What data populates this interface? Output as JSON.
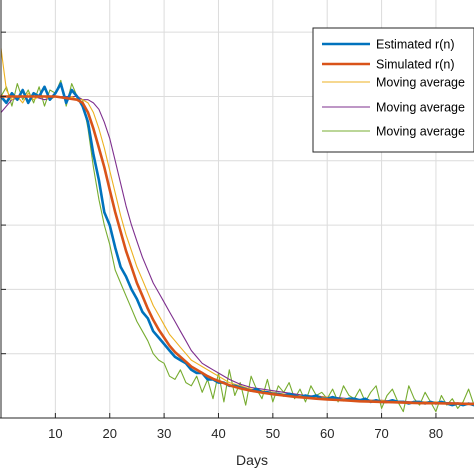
{
  "chart_data": {
    "type": "line",
    "title": "",
    "xlabel": "Days",
    "ylabel": "",
    "xlim": [
      0,
      87
    ],
    "ylim": [
      0,
      1.3
    ],
    "grid": true,
    "legend_placement": "top-right",
    "x_ticks": [
      10,
      20,
      30,
      40,
      50,
      60,
      70,
      80
    ],
    "y_gridlines": [
      0.2,
      0.4,
      0.6,
      0.8,
      1.0,
      1.2
    ],
    "colors": {
      "estimated": "#0072BD",
      "simulated": "#D95319",
      "ma1": "#EDB120",
      "ma2": "#7E2F8E",
      "ma3": "#77AC30",
      "grid": "#dcdcdc",
      "axis": "#262626"
    },
    "series": [
      {
        "name": "Estimated r(n)",
        "color": "#0072BD",
        "width": 2.6,
        "x": [
          0,
          1,
          2,
          3,
          4,
          5,
          6,
          7,
          8,
          9,
          10,
          11,
          12,
          13,
          14,
          15,
          16,
          17,
          18,
          19,
          20,
          21,
          22,
          23,
          24,
          25,
          26,
          27,
          28,
          29,
          30,
          31,
          32,
          33,
          34,
          35,
          36,
          37,
          38,
          39,
          40,
          41,
          42,
          43,
          44,
          45,
          46,
          47,
          48,
          49,
          50,
          51,
          52,
          53,
          54,
          55,
          56,
          57,
          58,
          59,
          60,
          61,
          62,
          63,
          64,
          65,
          66,
          67,
          68,
          69,
          70,
          71,
          72,
          73,
          74,
          75,
          76,
          77,
          78,
          79,
          80,
          81,
          82,
          83,
          84,
          85,
          86,
          87
        ],
        "y": [
          1.0,
          0.98,
          1.01,
          0.99,
          1.02,
          0.98,
          1.01,
          1.0,
          1.03,
          0.99,
          1.01,
          1.04,
          0.98,
          1.02,
          1.0,
          0.97,
          0.92,
          0.82,
          0.74,
          0.64,
          0.6,
          0.53,
          0.47,
          0.44,
          0.4,
          0.37,
          0.33,
          0.31,
          0.27,
          0.25,
          0.23,
          0.21,
          0.19,
          0.18,
          0.17,
          0.15,
          0.14,
          0.14,
          0.12,
          0.12,
          0.11,
          0.11,
          0.1,
          0.1,
          0.095,
          0.09,
          0.085,
          0.09,
          0.08,
          0.08,
          0.075,
          0.075,
          0.07,
          0.075,
          0.07,
          0.065,
          0.07,
          0.065,
          0.07,
          0.06,
          0.06,
          0.065,
          0.06,
          0.055,
          0.06,
          0.06,
          0.055,
          0.06,
          0.05,
          0.055,
          0.05,
          0.05,
          0.055,
          0.05,
          0.05,
          0.045,
          0.05,
          0.05,
          0.045,
          0.05,
          0.045,
          0.05,
          0.045,
          0.04,
          0.045,
          0.04,
          0.045,
          0.04
        ]
      },
      {
        "name": "Simulated r(n)",
        "color": "#D95319",
        "width": 2.6,
        "x": [
          0,
          2,
          4,
          6,
          8,
          10,
          12,
          14,
          15,
          16,
          17,
          18,
          19,
          20,
          21,
          22,
          23,
          24,
          25,
          26,
          27,
          28,
          29,
          30,
          31,
          32,
          33,
          34,
          35,
          36,
          37,
          38,
          39,
          40,
          42,
          44,
          46,
          48,
          50,
          52,
          54,
          56,
          58,
          60,
          62,
          64,
          66,
          68,
          70,
          72,
          74,
          76,
          78,
          80,
          82,
          84,
          86,
          87
        ],
        "y": [
          1.0,
          1.0,
          1.0,
          1.0,
          1.0,
          1.0,
          0.995,
          0.99,
          0.98,
          0.95,
          0.9,
          0.84,
          0.78,
          0.71,
          0.64,
          0.58,
          0.52,
          0.47,
          0.42,
          0.38,
          0.34,
          0.305,
          0.275,
          0.25,
          0.225,
          0.205,
          0.19,
          0.175,
          0.16,
          0.15,
          0.14,
          0.13,
          0.122,
          0.115,
          0.102,
          0.092,
          0.085,
          0.079,
          0.074,
          0.07,
          0.066,
          0.063,
          0.06,
          0.058,
          0.056,
          0.054,
          0.052,
          0.051,
          0.05,
          0.049,
          0.048,
          0.047,
          0.046,
          0.046,
          0.045,
          0.045,
          0.044,
          0.044
        ]
      },
      {
        "name": "Moving average",
        "color": "#EDB120",
        "width": 1.1,
        "x": [
          0,
          1,
          2,
          3,
          4,
          5,
          6,
          7,
          8,
          9,
          10,
          11,
          12,
          13,
          14,
          15,
          16,
          17,
          18,
          19,
          20,
          21,
          22,
          23,
          24,
          25,
          26,
          27,
          28,
          29,
          30,
          31,
          32,
          33,
          34,
          35,
          36,
          37,
          38,
          39,
          40,
          42,
          44,
          46,
          48,
          50,
          52,
          54,
          56,
          58,
          60,
          62,
          64,
          66,
          68,
          70,
          72,
          74,
          76,
          78,
          80,
          82,
          84,
          86,
          87
        ],
        "y": [
          1.15,
          1.02,
          0.99,
          1.0,
          0.98,
          1.01,
          0.99,
          1.0,
          1.0,
          0.99,
          1.0,
          1.0,
          0.99,
          1.0,
          0.99,
          0.99,
          0.98,
          0.95,
          0.9,
          0.84,
          0.77,
          0.7,
          0.63,
          0.57,
          0.52,
          0.47,
          0.43,
          0.39,
          0.35,
          0.32,
          0.29,
          0.26,
          0.24,
          0.22,
          0.2,
          0.18,
          0.17,
          0.16,
          0.15,
          0.14,
          0.13,
          0.11,
          0.1,
          0.09,
          0.085,
          0.08,
          0.075,
          0.07,
          0.07,
          0.065,
          0.065,
          0.06,
          0.06,
          0.055,
          0.055,
          0.055,
          0.05,
          0.05,
          0.05,
          0.05,
          0.05,
          0.045,
          0.045,
          0.045,
          0.04
        ]
      },
      {
        "name": "Moving average",
        "color": "#7E2F8E",
        "width": 1.1,
        "x": [
          0,
          2,
          4,
          6,
          8,
          10,
          12,
          14,
          15,
          16,
          17,
          18,
          19,
          20,
          21,
          22,
          23,
          24,
          25,
          26,
          27,
          28,
          29,
          30,
          31,
          32,
          33,
          34,
          35,
          36,
          37,
          38,
          39,
          40,
          42,
          44,
          46,
          48,
          50,
          52,
          54,
          56,
          58,
          60,
          62,
          64,
          66,
          68,
          70,
          72,
          74,
          76,
          78,
          80,
          82,
          84,
          86,
          87
        ],
        "y": [
          0.95,
          0.99,
          1.0,
          1.0,
          0.99,
          1.0,
          1.0,
          1.0,
          0.99,
          0.99,
          0.98,
          0.96,
          0.92,
          0.87,
          0.8,
          0.73,
          0.66,
          0.6,
          0.55,
          0.5,
          0.46,
          0.42,
          0.39,
          0.36,
          0.33,
          0.3,
          0.27,
          0.24,
          0.21,
          0.19,
          0.17,
          0.16,
          0.15,
          0.14,
          0.12,
          0.105,
          0.095,
          0.09,
          0.085,
          0.08,
          0.075,
          0.07,
          0.068,
          0.065,
          0.063,
          0.06,
          0.058,
          0.056,
          0.055,
          0.053,
          0.052,
          0.05,
          0.05,
          0.049,
          0.048,
          0.047,
          0.046,
          0.046
        ]
      },
      {
        "name": "Moving average",
        "color": "#77AC30",
        "width": 1.1,
        "x": [
          0,
          1,
          2,
          3,
          4,
          5,
          6,
          7,
          8,
          9,
          10,
          11,
          12,
          13,
          14,
          15,
          16,
          17,
          18,
          19,
          20,
          21,
          22,
          23,
          24,
          25,
          26,
          27,
          28,
          29,
          30,
          31,
          32,
          33,
          34,
          35,
          36,
          37,
          38,
          39,
          40,
          41,
          42,
          43,
          44,
          45,
          46,
          47,
          48,
          49,
          50,
          51,
          52,
          53,
          54,
          55,
          56,
          57,
          58,
          59,
          60,
          61,
          62,
          63,
          64,
          65,
          66,
          67,
          68,
          69,
          70,
          71,
          72,
          73,
          74,
          75,
          76,
          77,
          78,
          79,
          80,
          81,
          82,
          83,
          84,
          85,
          86,
          87
        ],
        "y": [
          1.0,
          1.03,
          0.97,
          1.04,
          0.99,
          1.02,
          0.98,
          1.03,
          0.97,
          1.02,
          1.01,
          1.05,
          0.97,
          1.04,
          1.0,
          0.99,
          0.9,
          0.78,
          0.68,
          0.6,
          0.54,
          0.46,
          0.42,
          0.38,
          0.34,
          0.3,
          0.27,
          0.24,
          0.2,
          0.18,
          0.17,
          0.13,
          0.12,
          0.15,
          0.11,
          0.1,
          0.13,
          0.08,
          0.12,
          0.06,
          0.14,
          0.05,
          0.15,
          0.07,
          0.11,
          0.04,
          0.13,
          0.09,
          0.06,
          0.12,
          0.05,
          0.1,
          0.08,
          0.11,
          0.06,
          0.09,
          0.05,
          0.1,
          0.07,
          0.08,
          0.06,
          0.09,
          0.05,
          0.1,
          0.07,
          0.06,
          0.09,
          0.05,
          0.08,
          0.1,
          0.03,
          0.07,
          0.09,
          0.05,
          0.02,
          0.1,
          0.06,
          0.04,
          0.08,
          0.05,
          0.02,
          0.07,
          0.04,
          0.06,
          0.03,
          0.05,
          0.09,
          0.04
        ]
      }
    ]
  }
}
